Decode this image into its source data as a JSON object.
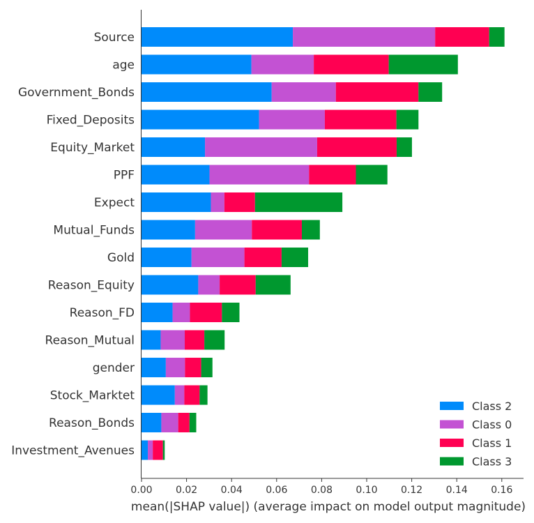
{
  "chart_data": {
    "type": "bar",
    "orientation": "horizontal",
    "stacked": true,
    "xlabel": "mean(|SHAP value|) (average impact on model output magnitude)",
    "xlim": [
      0,
      0.17
    ],
    "xticks": [
      "0.00",
      "0.02",
      "0.04",
      "0.06",
      "0.08",
      "0.10",
      "0.12",
      "0.14",
      "0.16"
    ],
    "grid": false,
    "legend_position": "bottom-right",
    "categories": [
      "Source",
      "age",
      "Government_Bonds",
      "Fixed_Deposits",
      "Equity_Market",
      "PPF",
      "Expect",
      "Mutual_Funds",
      "Gold",
      "Reason_Equity",
      "Reason_FD",
      "Reason_Mutual",
      "gender",
      "Stock_Marktet",
      "Reason_Bonds",
      "Investment_Avenues"
    ],
    "series": [
      {
        "name": "Class 2",
        "color": "#008bfb",
        "values": [
          0.0672,
          0.0488,
          0.0578,
          0.0522,
          0.0282,
          0.0302,
          0.0308,
          0.0238,
          0.0222,
          0.0252,
          0.0138,
          0.0085,
          0.0108,
          0.0148,
          0.0088,
          0.0028
        ]
      },
      {
        "name": "Class 0",
        "color": "#c352d3",
        "values": [
          0.0632,
          0.0277,
          0.0285,
          0.0292,
          0.0498,
          0.0442,
          0.006,
          0.0252,
          0.0235,
          0.0095,
          0.0077,
          0.0107,
          0.0085,
          0.0042,
          0.0075,
          0.0022
        ]
      },
      {
        "name": "Class 1",
        "color": "#ff0052",
        "values": [
          0.024,
          0.0333,
          0.0367,
          0.0318,
          0.0353,
          0.0208,
          0.0136,
          0.0222,
          0.0165,
          0.016,
          0.0142,
          0.0087,
          0.0072,
          0.0068,
          0.005,
          0.0045
        ]
      },
      {
        "name": "Class 3",
        "color": "#00982f",
        "values": [
          0.0068,
          0.0307,
          0.0105,
          0.0098,
          0.0068,
          0.014,
          0.0388,
          0.008,
          0.0118,
          0.0155,
          0.0078,
          0.009,
          0.005,
          0.0035,
          0.003,
          0.0008
        ]
      }
    ]
  }
}
